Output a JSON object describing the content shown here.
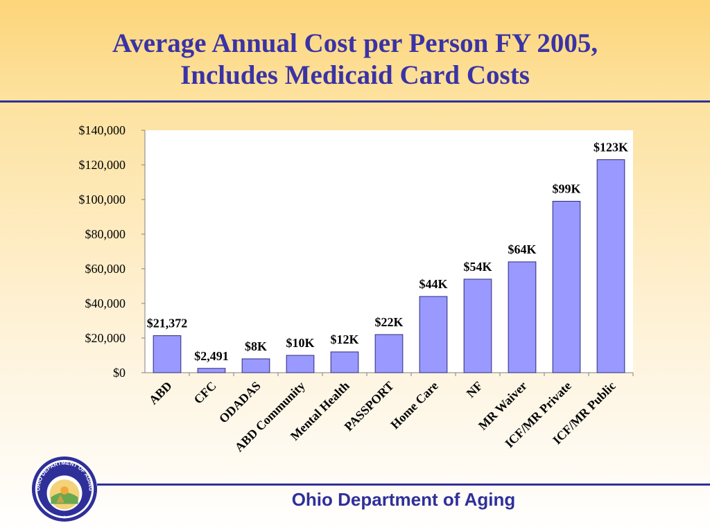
{
  "slide": {
    "title_line1": "Average Annual Cost per Person FY 2005,",
    "title_line2": "Includes Medicaid Card Costs",
    "footer": "Ohio Department of Aging",
    "seal_text": "OHIO DEPARTMENT OF AGING",
    "colors": {
      "accent": "#3a33a6",
      "bar": "#9999ff",
      "bar_stroke": "#2a2a7a"
    }
  },
  "chart_data": {
    "type": "bar",
    "title": "",
    "xlabel": "",
    "ylabel": "",
    "ylim": [
      0,
      140000
    ],
    "yticks": [
      0,
      20000,
      40000,
      60000,
      80000,
      100000,
      120000,
      140000
    ],
    "ytick_labels": [
      "$0",
      "$20,000",
      "$40,000",
      "$60,000",
      "$80,000",
      "$100,000",
      "$120,000",
      "$140,000"
    ],
    "grid": false,
    "legend": "none",
    "categories": [
      "ABD",
      "CFC",
      "ODADAS",
      "ABD Community",
      "Mental Health",
      "PASSPORT",
      "Home Care",
      "NF",
      "MR Waiver",
      "ICF/MR Private",
      "ICF/MR Public"
    ],
    "values": [
      21372,
      2491,
      8000,
      10000,
      12000,
      22000,
      44000,
      54000,
      64000,
      99000,
      123000
    ],
    "data_labels": [
      "$21,372",
      "$2,491",
      "$8K",
      "$10K",
      "$12K",
      "$22K",
      "$44K",
      "$54K",
      "$64K",
      "$99K",
      "$123K"
    ]
  }
}
